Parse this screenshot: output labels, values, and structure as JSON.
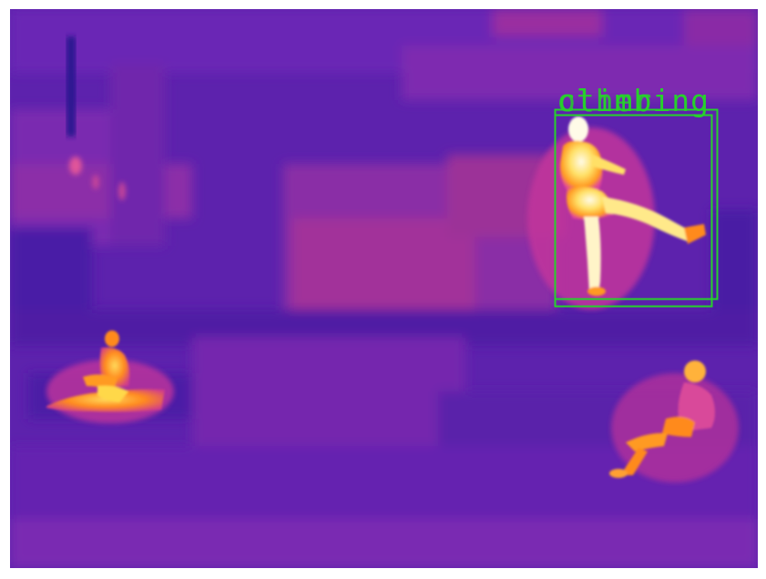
{
  "image": {
    "description_kind": "thermal-camera-frame",
    "palette": {
      "background_dark": "#3d1b9c",
      "background_mid": "#6a24b8",
      "warm_magenta": "#b0308f",
      "hot_orange": "#ff8a1f",
      "hot_yellow": "#ffd84a",
      "hottest_white": "#fff8e0"
    }
  },
  "detections": [
    {
      "label_a": "climbing",
      "label_b": "other",
      "box_color": "#27d12c"
    }
  ],
  "figures": [
    {
      "name": "person-kicking",
      "pose": "standing-kick"
    },
    {
      "name": "person-sitting-left",
      "pose": "sitting"
    },
    {
      "name": "person-sitting-right",
      "pose": "sitting"
    }
  ]
}
